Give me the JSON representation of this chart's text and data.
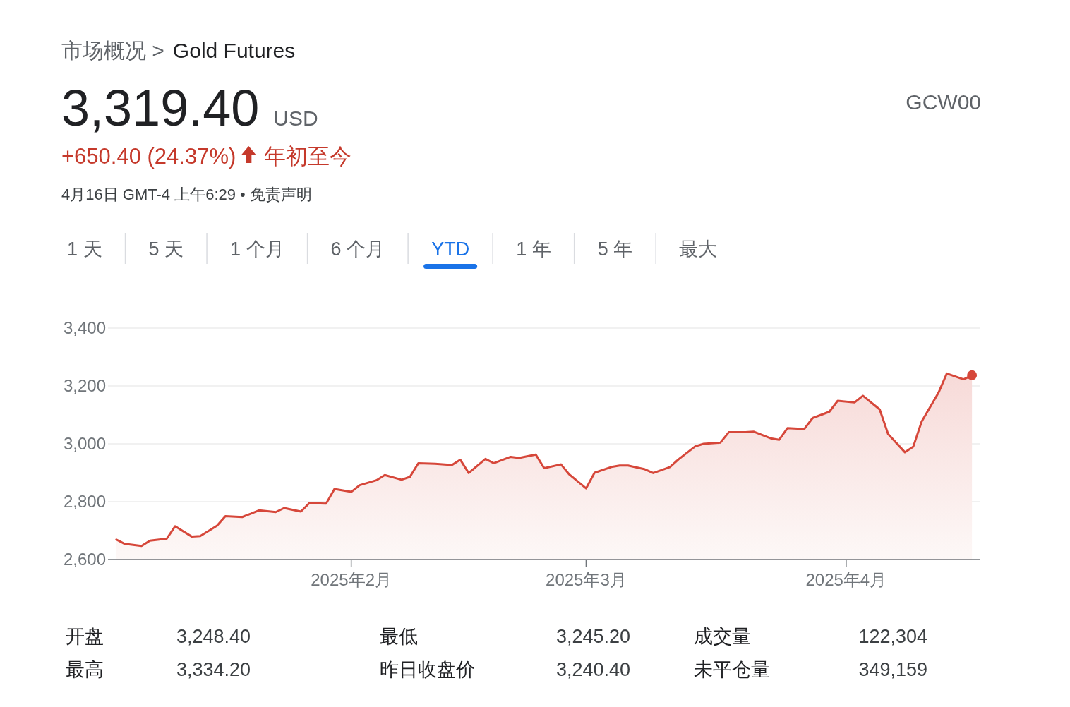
{
  "chart_data": {
    "type": "area",
    "title": "Gold Futures",
    "annotations": [
      "市场概况 >",
      "3,319.40",
      "USD",
      "+650.40 (24.37%)",
      "年初至今",
      "4月16日 GMT-4 上午6:29 • 免责声明",
      "GCW00",
      "1 天",
      "5 天",
      "1 个月",
      "6 个月",
      "YTD",
      "1 年",
      "5 年",
      "最大",
      "开盘",
      "3,248.40",
      "最低",
      "3,245.20",
      "成交量",
      "122,304",
      "最高",
      "3,334.20",
      "昨日收盘价",
      "3,240.40",
      "未平仓量",
      "349,159"
    ],
    "x": [
      "2025-01-04",
      "2025-01-05",
      "2025-01-07",
      "2025-01-08",
      "2025-01-10",
      "2025-01-11",
      "2025-01-13",
      "2025-01-14",
      "2025-01-16",
      "2025-01-17",
      "2025-01-19",
      "2025-01-20",
      "2025-01-21",
      "2025-01-23",
      "2025-01-24",
      "2025-01-26",
      "2025-01-27",
      "2025-01-29",
      "2025-01-30",
      "2025-02-01",
      "2025-02-02",
      "2025-02-04",
      "2025-02-05",
      "2025-02-07",
      "2025-02-08",
      "2025-02-09",
      "2025-02-11",
      "2025-02-13",
      "2025-02-14",
      "2025-02-15",
      "2025-02-17",
      "2025-02-18",
      "2025-02-20",
      "2025-02-21",
      "2025-02-23",
      "2025-02-24",
      "2025-02-26",
      "2025-02-27",
      "2025-03-01",
      "2025-03-02",
      "2025-03-04",
      "2025-03-05",
      "2025-03-06",
      "2025-03-08",
      "2025-03-09",
      "2025-03-11",
      "2025-03-12",
      "2025-03-14",
      "2025-03-15",
      "2025-03-17",
      "2025-03-18",
      "2025-03-20",
      "2025-03-21",
      "2025-03-23",
      "2025-03-24",
      "2025-03-25",
      "2025-03-27",
      "2025-03-28",
      "2025-03-30",
      "2025-03-31",
      "2025-04-02",
      "2025-04-03",
      "2025-04-05",
      "2025-04-06",
      "2025-04-08",
      "2025-04-09",
      "2025-04-10",
      "2025-04-12",
      "2025-04-13",
      "2025-04-15",
      "2025-04-16"
    ],
    "series": [
      {
        "type": "area",
        "color": "#d6473a",
        "values": [
          2669,
          2654,
          2647,
          2665,
          2672,
          2715,
          2679,
          2681,
          2717,
          2750,
          2747,
          2758,
          2770,
          2764,
          2778,
          2766,
          2795,
          2793,
          2844,
          2834,
          2857,
          2874,
          2892,
          2876,
          2886,
          2933,
          2931,
          2927,
          2945,
          2899,
          2948,
          2933,
          2955,
          2951,
          2963,
          2916,
          2929,
          2894,
          2846,
          2900,
          2920,
          2925,
          2925,
          2912,
          2899,
          2920,
          2946,
          2991,
          3000,
          3004,
          3040,
          3040,
          3042,
          3019,
          3014,
          3054,
          3051,
          3089,
          3111,
          3149,
          3143,
          3166,
          3119,
          3034,
          2971,
          2990,
          3077,
          3176,
          3243,
          3223,
          3237
        ]
      },
      {
        "type": "scatter",
        "color": "#d6473a",
        "marker": "circle",
        "x": [
          "2025-04-16"
        ],
        "values": [
          3237
        ]
      }
    ],
    "xlim": [
      "2025-01-03",
      "2025-04-17"
    ],
    "xticks": [
      {
        "value": "2025-02-01",
        "label": "2025年2月"
      },
      {
        "value": "2025-03-01",
        "label": "2025年3月"
      },
      {
        "value": "2025-04-01",
        "label": "2025年4月"
      }
    ],
    "ylim": [
      2600,
      3400
    ],
    "yticks": [
      {
        "value": 2600,
        "label": "2,600"
      },
      {
        "value": 2800,
        "label": "2,800"
      },
      {
        "value": 3000,
        "label": "3,000"
      },
      {
        "value": 3200,
        "label": "3,200"
      },
      {
        "value": 3400,
        "label": "3,400"
      }
    ],
    "grid": "y"
  }
}
